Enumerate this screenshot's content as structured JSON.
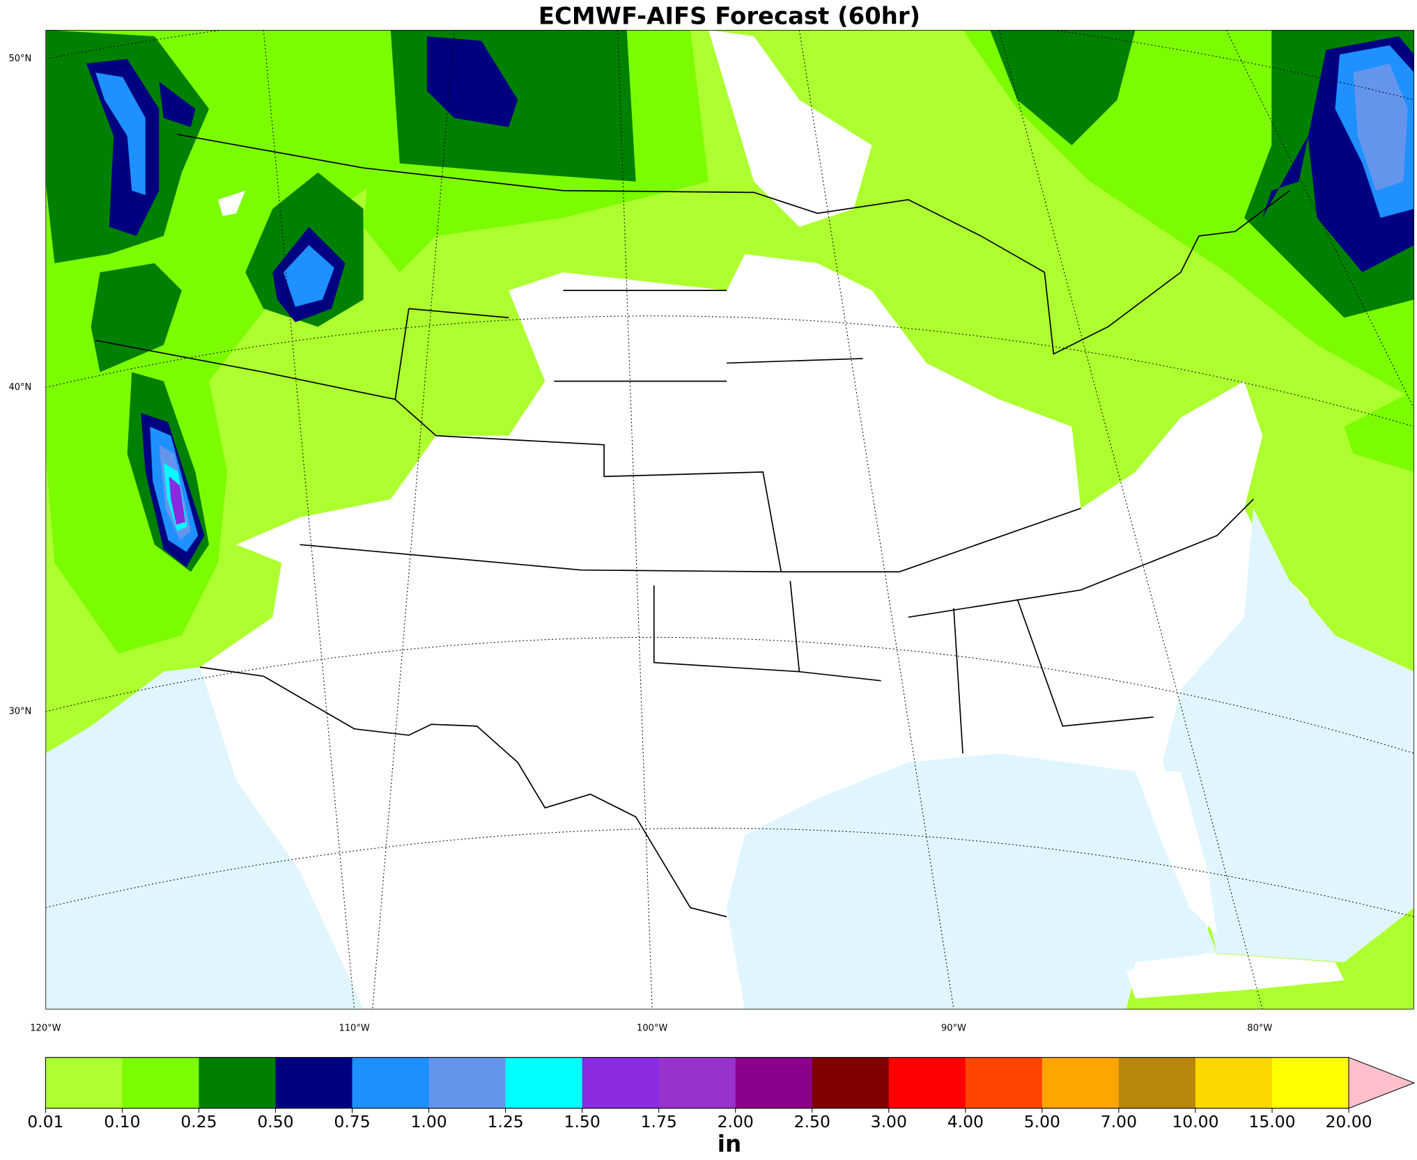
{
  "title": "ECMWF-AIFS Forecast (60hr)",
  "map": {
    "lat_labels": [
      "50°N",
      "40°N",
      "30°N"
    ],
    "lon_labels": [
      "120°W",
      "110°W",
      "100°W",
      "90°W",
      "80°W"
    ]
  },
  "colorbar": {
    "label": "in",
    "ticks": [
      {
        "value": 0.01,
        "label": "0.01"
      },
      {
        "value": 0.1,
        "label": "0.10"
      },
      {
        "value": 0.25,
        "label": "0.25"
      },
      {
        "value": 0.5,
        "label": "0.50"
      },
      {
        "value": 0.75,
        "label": "0.75"
      },
      {
        "value": 1,
        "label": "1.00"
      },
      {
        "value": 1.25,
        "label": "1.25"
      },
      {
        "value": 1.5,
        "label": "1.50"
      },
      {
        "value": 1.75,
        "label": "1.75"
      },
      {
        "value": 2,
        "label": "2.00"
      },
      {
        "value": 2.5,
        "label": "2.50"
      },
      {
        "value": 3,
        "label": "3.00"
      },
      {
        "value": 4,
        "label": "4.00"
      },
      {
        "value": 5,
        "label": "5.00"
      },
      {
        "value": 7,
        "label": "7.00"
      },
      {
        "value": 10,
        "label": "10.00"
      },
      {
        "value": 15,
        "label": "15.00"
      },
      {
        "value": 20,
        "label": "20.00"
      }
    ],
    "colors": [
      "#adff2f",
      "#7cfc00",
      "#008000",
      "#000080",
      "#1e90ff",
      "#6495ed",
      "#00ffff",
      "#8a2be2",
      "#9932cc",
      "#8b008b",
      "#800000",
      "#ff0000",
      "#ff4500",
      "#ffa500",
      "#b8860b",
      "#ffd700",
      "#ffff00"
    ],
    "extend_color": "#ffc0cb"
  }
}
